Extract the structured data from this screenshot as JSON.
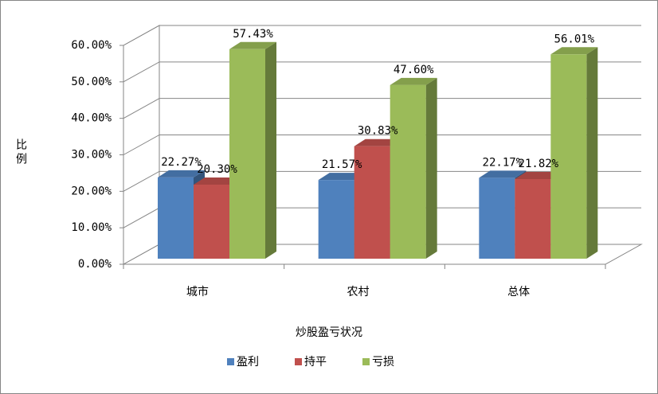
{
  "chart_data": {
    "type": "bar3d",
    "x_label": "炒股盈亏状况",
    "y_label": "比例",
    "categories": [
      "城市",
      "农村",
      "总体"
    ],
    "series": [
      {
        "name": "盈利",
        "color": "#4f81bd",
        "values": [
          22.27,
          21.57,
          22.17
        ],
        "value_labels": [
          "22.27%",
          "21.57%",
          "22.17%"
        ]
      },
      {
        "name": "持平",
        "color": "#c0504d",
        "values": [
          20.3,
          30.83,
          21.82
        ],
        "value_labels": [
          "20.30%",
          "30.83%",
          "21.82%"
        ]
      },
      {
        "name": "亏损",
        "color": "#9bbb59",
        "values": [
          57.43,
          47.6,
          56.01
        ],
        "value_labels": [
          "57.43%",
          "47.60%",
          "56.01%"
        ]
      }
    ],
    "ylim": [
      0,
      60
    ],
    "yticks": [
      {
        "value": 0,
        "label": "0.00%"
      },
      {
        "value": 10,
        "label": "10.00%"
      },
      {
        "value": 20,
        "label": "20.00%"
      },
      {
        "value": 30,
        "label": "30.00%"
      },
      {
        "value": 40,
        "label": "40.00%"
      },
      {
        "value": 50,
        "label": "50.00%"
      },
      {
        "value": 60,
        "label": "60.00%"
      }
    ],
    "grid": true,
    "legend": "bottom"
  }
}
